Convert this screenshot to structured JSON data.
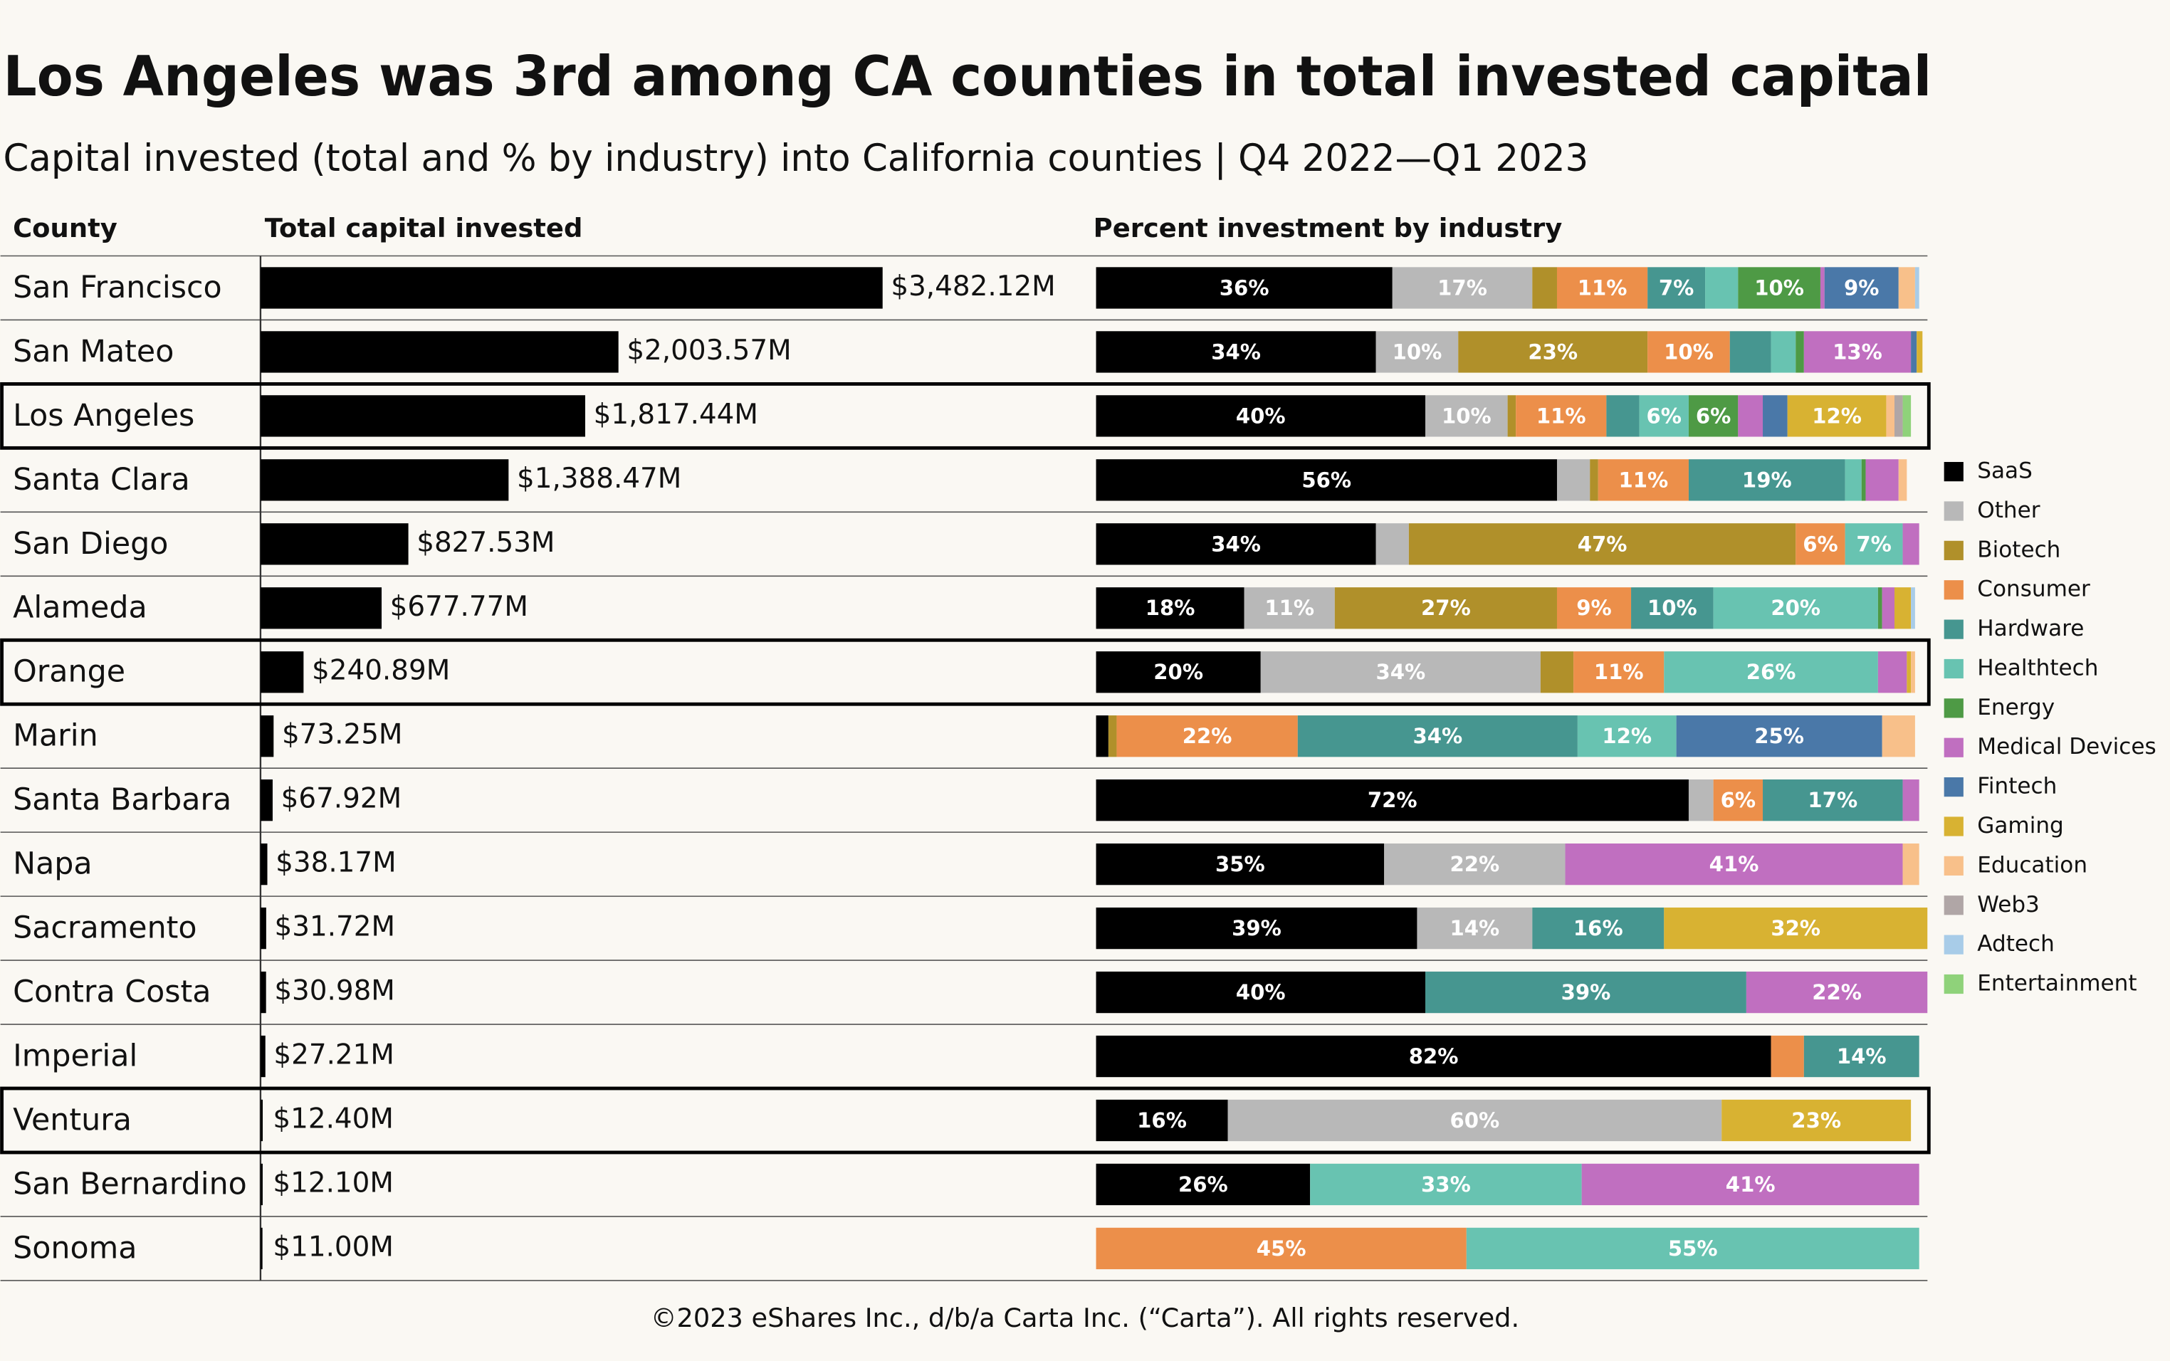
{
  "title": "Los Angeles was 3rd among CA counties in total invested capital",
  "subtitle": "Capital invested (total and % by industry) into California counties  |  Q4 2022—Q1 2023",
  "footer": "©2023 eShares Inc., d/b/a Carta Inc. (“Carta”). All rights reserved.",
  "chart_data": [
    {
      "type": "bar",
      "orientation": "horizontal",
      "category_header": "County",
      "header": "Total capital invested",
      "categories": [
        "San Francisco",
        "San Mateo",
        "Los Angeles",
        "Santa Clara",
        "San Diego",
        "Alameda",
        "Orange",
        "Marin",
        "Santa Barbara",
        "Napa",
        "Sacramento",
        "Contra Costa",
        "Imperial",
        "Ventura",
        "San Bernardino",
        "Sonoma"
      ],
      "values": [
        3482.12,
        2003.57,
        1817.44,
        1388.47,
        827.53,
        677.77,
        240.89,
        73.25,
        67.92,
        38.17,
        31.72,
        30.98,
        27.21,
        12.4,
        12.1,
        11.0
      ],
      "value_labels": [
        "$3,482.12M",
        "$2,003.57M",
        "$1,817.44M",
        "$1,388.47M",
        "$827.53M",
        "$677.77M",
        "$240.89M",
        "$73.25M",
        "$67.92M",
        "$38.17M",
        "$31.72M",
        "$30.98M",
        "$27.21M",
        "$12.40M",
        "$12.10M",
        "$11.00M"
      ],
      "color": "#000000",
      "xlim": [
        0,
        3500
      ],
      "highlight_rows": [
        2,
        6,
        13
      ]
    },
    {
      "type": "stacked_bar",
      "orientation": "horizontal",
      "header": "Percent investment by industry",
      "xlim": [
        0,
        100
      ],
      "series": [
        {
          "name": "SaaS",
          "color": "#000000",
          "values": [
            36,
            34,
            40,
            56,
            34,
            18,
            20,
            1.5,
            72,
            35,
            39,
            40,
            82,
            16,
            26,
            null
          ],
          "value_labels": [
            "36%",
            "34%",
            "40%",
            "56%",
            "34%",
            "18%",
            "20%",
            null,
            "72%",
            "35%",
            "39%",
            "40%",
            "82%",
            "16%",
            "26%",
            null
          ]
        },
        {
          "name": "Other",
          "color": "#b8b8b8",
          "values": [
            17,
            10,
            10,
            4,
            4,
            11,
            34,
            null,
            3,
            22,
            14,
            null,
            null,
            60,
            null,
            null
          ],
          "value_labels": [
            "17%",
            "10%",
            "10%",
            null,
            null,
            "11%",
            "34%",
            null,
            null,
            "22%",
            "14%",
            null,
            null,
            "60%",
            null,
            null
          ]
        },
        {
          "name": "Biotech",
          "color": "#b0902a",
          "values": [
            3,
            23,
            1,
            1,
            47,
            27,
            4,
            1,
            null,
            null,
            null,
            null,
            null,
            null,
            null,
            null
          ],
          "value_labels": [
            null,
            "23%",
            null,
            null,
            "47%",
            "27%",
            null,
            null,
            null,
            null,
            null,
            null,
            null,
            null,
            null,
            null
          ]
        },
        {
          "name": "Consumer",
          "color": "#ec8f4a",
          "values": [
            11,
            10,
            11,
            11,
            6,
            9,
            11,
            22,
            6,
            null,
            null,
            null,
            4,
            null,
            null,
            45
          ],
          "value_labels": [
            "11%",
            "10%",
            "11%",
            "11%",
            "6%",
            "9%",
            "11%",
            "22%",
            "6%",
            null,
            null,
            null,
            null,
            null,
            null,
            "45%"
          ]
        },
        {
          "name": "Hardware",
          "color": "#469690",
          "values": [
            7,
            5,
            4,
            19,
            null,
            10,
            null,
            34,
            17,
            null,
            16,
            39,
            14,
            null,
            null,
            null
          ],
          "value_labels": [
            "7%",
            null,
            null,
            "19%",
            null,
            "10%",
            null,
            "34%",
            "17%",
            null,
            "16%",
            "39%",
            "14%",
            null,
            null,
            null
          ]
        },
        {
          "name": "Healthtech",
          "color": "#68c3b1",
          "values": [
            4,
            3,
            6,
            2,
            7,
            20,
            26,
            12,
            null,
            null,
            null,
            null,
            null,
            null,
            33,
            55
          ],
          "value_labels": [
            null,
            null,
            "6%",
            null,
            "7%",
            "20%",
            "26%",
            "12%",
            null,
            null,
            null,
            null,
            null,
            null,
            "33%",
            "55%"
          ]
        },
        {
          "name": "Energy",
          "color": "#4e9a45",
          "values": [
            10,
            1,
            6,
            0.5,
            null,
            0.5,
            null,
            null,
            null,
            null,
            null,
            null,
            null,
            null,
            null,
            null
          ],
          "value_labels": [
            "10%",
            null,
            "6%",
            null,
            null,
            null,
            null,
            null,
            null,
            null,
            null,
            null,
            null,
            null,
            null,
            null
          ]
        },
        {
          "name": "Medical Devices",
          "color": "#c06fc0",
          "values": [
            0.5,
            13,
            3,
            4,
            2,
            1.5,
            3.5,
            null,
            2,
            41,
            null,
            22,
            null,
            null,
            41,
            null
          ],
          "value_labels": [
            null,
            "13%",
            null,
            null,
            null,
            null,
            null,
            null,
            null,
            "41%",
            null,
            "22%",
            null,
            null,
            "41%",
            null
          ]
        },
        {
          "name": "Fintech",
          "color": "#4a78a8",
          "values": [
            9,
            0.7,
            3,
            null,
            null,
            null,
            null,
            25,
            null,
            null,
            null,
            null,
            null,
            null,
            null,
            null
          ],
          "value_labels": [
            "9%",
            null,
            null,
            null,
            null,
            null,
            null,
            "25%",
            null,
            null,
            null,
            null,
            null,
            null,
            null,
            null
          ]
        },
        {
          "name": "Gaming",
          "color": "#d8b232",
          "values": [
            null,
            0.7,
            12,
            null,
            null,
            2,
            0.5,
            null,
            null,
            null,
            32,
            null,
            null,
            23,
            null,
            null
          ],
          "value_labels": [
            null,
            null,
            "12%",
            null,
            null,
            null,
            null,
            null,
            null,
            null,
            "32%",
            null,
            null,
            "23%",
            null,
            null
          ]
        },
        {
          "name": "Education",
          "color": "#f8c08a",
          "values": [
            2,
            null,
            1,
            1,
            null,
            null,
            0.5,
            4,
            null,
            2,
            null,
            null,
            null,
            null,
            null,
            null
          ]
        },
        {
          "name": "Web3",
          "color": "#b0a6a6",
          "values": [
            null,
            null,
            1,
            null,
            null,
            null,
            null,
            null,
            null,
            null,
            null,
            null,
            null,
            null,
            null,
            null
          ]
        },
        {
          "name": "Adtech",
          "color": "#a8cce8",
          "values": [
            0.5,
            null,
            null,
            null,
            null,
            0.5,
            null,
            null,
            null,
            null,
            null,
            null,
            null,
            null,
            null,
            null
          ]
        },
        {
          "name": "Entertainment",
          "color": "#8fd27a",
          "values": [
            null,
            null,
            1,
            null,
            null,
            null,
            null,
            null,
            null,
            null,
            null,
            null,
            null,
            null,
            null,
            null
          ]
        }
      ]
    }
  ]
}
